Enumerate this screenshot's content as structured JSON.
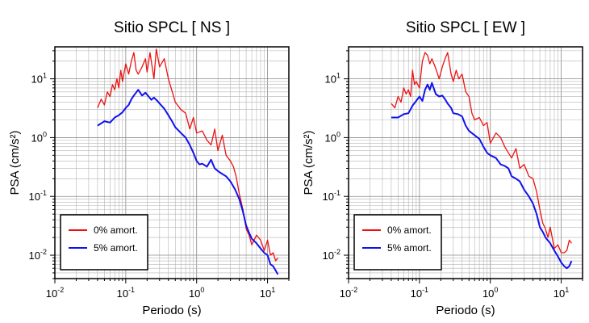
{
  "chart_data": [
    {
      "type": "line",
      "title": "Sitio SPCL [ NS ]",
      "xlabel": "Periodo (s)",
      "ylabel": "PSA (cm/s²)",
      "xscale": "log",
      "yscale": "log",
      "xlim": [
        0.01,
        20
      ],
      "ylim": [
        0.004,
        35
      ],
      "grid": true,
      "legend_position": "bottom-left",
      "x_ticks": [
        {
          "value": 0.01,
          "base": "10",
          "exp": "-2"
        },
        {
          "value": 0.1,
          "base": "10",
          "exp": "-1"
        },
        {
          "value": 1,
          "base": "10",
          "exp": "0"
        },
        {
          "value": 10,
          "base": "10",
          "exp": "1"
        }
      ],
      "y_ticks": [
        {
          "value": 0.01,
          "base": "10",
          "exp": "-2"
        },
        {
          "value": 0.1,
          "base": "10",
          "exp": "-1"
        },
        {
          "value": 1,
          "base": "10",
          "exp": "0"
        },
        {
          "value": 10,
          "base": "10",
          "exp": "1"
        }
      ],
      "series": [
        {
          "name": "0% amort.",
          "color": "#ee1111",
          "x": [
            0.04,
            0.045,
            0.05,
            0.055,
            0.06,
            0.065,
            0.07,
            0.075,
            0.08,
            0.085,
            0.09,
            0.1,
            0.11,
            0.12,
            0.13,
            0.14,
            0.15,
            0.17,
            0.19,
            0.2,
            0.22,
            0.25,
            0.27,
            0.3,
            0.35,
            0.4,
            0.5,
            0.6,
            0.7,
            0.8,
            0.9,
            1.0,
            1.2,
            1.4,
            1.6,
            1.8,
            2.0,
            2.3,
            2.6,
            3.0,
            3.3,
            3.6,
            4.0,
            4.5,
            5.0,
            5.5,
            6.0,
            7.0,
            8.0,
            9.0,
            10.0,
            11.0,
            12.0,
            13.0,
            14.0
          ],
          "y": [
            3.2,
            4.5,
            3.6,
            6.0,
            5.0,
            8.0,
            6.5,
            10.0,
            7.0,
            14.0,
            9.0,
            18.0,
            12.0,
            20.0,
            28.0,
            14.0,
            12.0,
            16.0,
            22.0,
            13.0,
            28.0,
            10.0,
            32.0,
            16.0,
            22.0,
            10.0,
            4.0,
            3.0,
            2.6,
            1.4,
            2.2,
            1.2,
            1.3,
            0.9,
            0.75,
            1.4,
            0.6,
            1.1,
            0.5,
            0.4,
            0.32,
            0.22,
            0.11,
            0.06,
            0.028,
            0.022,
            0.015,
            0.022,
            0.018,
            0.012,
            0.018,
            0.01,
            0.011,
            0.008,
            0.009
          ]
        },
        {
          "name": "5% amort.",
          "color": "#1111ee",
          "x": [
            0.04,
            0.05,
            0.06,
            0.07,
            0.08,
            0.09,
            0.1,
            0.11,
            0.12,
            0.13,
            0.15,
            0.17,
            0.19,
            0.21,
            0.23,
            0.25,
            0.28,
            0.3,
            0.35,
            0.4,
            0.45,
            0.5,
            0.6,
            0.7,
            0.8,
            0.9,
            1.0,
            1.1,
            1.2,
            1.4,
            1.6,
            1.8,
            2.0,
            2.3,
            2.6,
            3.0,
            3.5,
            4.0,
            4.5,
            5.0,
            5.5,
            6.0,
            7.0,
            8.0,
            9.0,
            10.0,
            11.0,
            12.0,
            13.0,
            14.0
          ],
          "y": [
            1.6,
            1.9,
            1.8,
            2.2,
            2.4,
            2.7,
            3.2,
            3.6,
            4.5,
            5.2,
            6.5,
            5.2,
            5.8,
            5.0,
            4.4,
            4.8,
            4.2,
            3.8,
            3.1,
            2.4,
            1.9,
            1.5,
            1.2,
            1.0,
            0.75,
            0.55,
            0.4,
            0.35,
            0.36,
            0.32,
            0.42,
            0.3,
            0.27,
            0.24,
            0.22,
            0.18,
            0.13,
            0.09,
            0.055,
            0.032,
            0.024,
            0.019,
            0.016,
            0.013,
            0.011,
            0.01,
            0.007,
            0.0065,
            0.0055,
            0.0047
          ]
        }
      ]
    },
    {
      "type": "line",
      "title": "Sitio SPCL [ EW ]",
      "xlabel": "Periodo (s)",
      "ylabel": "PSA (cm/s²)",
      "xscale": "log",
      "yscale": "log",
      "xlim": [
        0.01,
        20
      ],
      "ylim": [
        0.004,
        35
      ],
      "grid": true,
      "legend_position": "bottom-left",
      "x_ticks": [
        {
          "value": 0.01,
          "base": "10",
          "exp": "-2"
        },
        {
          "value": 0.1,
          "base": "10",
          "exp": "-1"
        },
        {
          "value": 1,
          "base": "10",
          "exp": "0"
        },
        {
          "value": 10,
          "base": "10",
          "exp": "1"
        }
      ],
      "y_ticks": [
        {
          "value": 0.01,
          "base": "10",
          "exp": "-2"
        },
        {
          "value": 0.1,
          "base": "10",
          "exp": "-1"
        },
        {
          "value": 1,
          "base": "10",
          "exp": "0"
        },
        {
          "value": 10,
          "base": "10",
          "exp": "1"
        }
      ],
      "series": [
        {
          "name": "0% amort.",
          "color": "#ee1111",
          "x": [
            0.04,
            0.045,
            0.05,
            0.055,
            0.06,
            0.065,
            0.07,
            0.075,
            0.08,
            0.085,
            0.09,
            0.1,
            0.11,
            0.12,
            0.13,
            0.14,
            0.15,
            0.17,
            0.19,
            0.21,
            0.23,
            0.25,
            0.28,
            0.3,
            0.33,
            0.36,
            0.4,
            0.45,
            0.5,
            0.55,
            0.6,
            0.7,
            0.8,
            0.9,
            1.0,
            1.2,
            1.4,
            1.6,
            1.8,
            2.0,
            2.3,
            2.6,
            3.0,
            3.5,
            4.0,
            4.5,
            5.0,
            5.5,
            6.0,
            6.5,
            7.0,
            8.0,
            9.0,
            10.0,
            11.0,
            12.0,
            13.0,
            14.0
          ],
          "y": [
            3.8,
            3.2,
            5.0,
            4.0,
            7.0,
            5.5,
            6.5,
            5.0,
            14.0,
            8.0,
            9.0,
            7.0,
            20.0,
            28.0,
            25.0,
            18.0,
            22.0,
            15.0,
            10.0,
            16.0,
            22.0,
            28.0,
            12.0,
            9.0,
            14.0,
            10.0,
            12.0,
            6.0,
            5.0,
            2.6,
            2.0,
            2.2,
            1.6,
            1.8,
            0.8,
            1.2,
            1.0,
            0.7,
            0.55,
            0.45,
            0.65,
            0.3,
            0.35,
            0.22,
            0.2,
            0.12,
            0.06,
            0.035,
            0.028,
            0.02,
            0.03,
            0.013,
            0.015,
            0.011,
            0.011,
            0.012,
            0.018,
            0.016
          ]
        },
        {
          "name": "5% amort.",
          "color": "#1111ee",
          "x": [
            0.04,
            0.05,
            0.06,
            0.07,
            0.08,
            0.09,
            0.1,
            0.11,
            0.12,
            0.13,
            0.14,
            0.15,
            0.17,
            0.19,
            0.21,
            0.23,
            0.25,
            0.28,
            0.3,
            0.35,
            0.4,
            0.45,
            0.5,
            0.6,
            0.7,
            0.8,
            0.9,
            1.0,
            1.2,
            1.4,
            1.6,
            1.8,
            2.0,
            2.3,
            2.6,
            3.0,
            3.5,
            4.0,
            4.5,
            5.0,
            5.5,
            6.0,
            7.0,
            8.0,
            9.0,
            10.0,
            11.0,
            12.0,
            13.0,
            14.0
          ],
          "y": [
            2.2,
            2.2,
            2.5,
            2.6,
            3.5,
            4.2,
            5.0,
            4.2,
            6.5,
            8.0,
            6.5,
            8.5,
            5.5,
            5.0,
            5.2,
            4.5,
            3.8,
            3.2,
            2.6,
            2.5,
            2.3,
            1.6,
            1.3,
            1.1,
            0.95,
            0.7,
            0.55,
            0.5,
            0.45,
            0.35,
            0.33,
            0.3,
            0.22,
            0.2,
            0.18,
            0.13,
            0.1,
            0.075,
            0.05,
            0.03,
            0.025,
            0.02,
            0.016,
            0.012,
            0.0095,
            0.0075,
            0.0065,
            0.006,
            0.0065,
            0.008
          ]
        }
      ]
    }
  ]
}
